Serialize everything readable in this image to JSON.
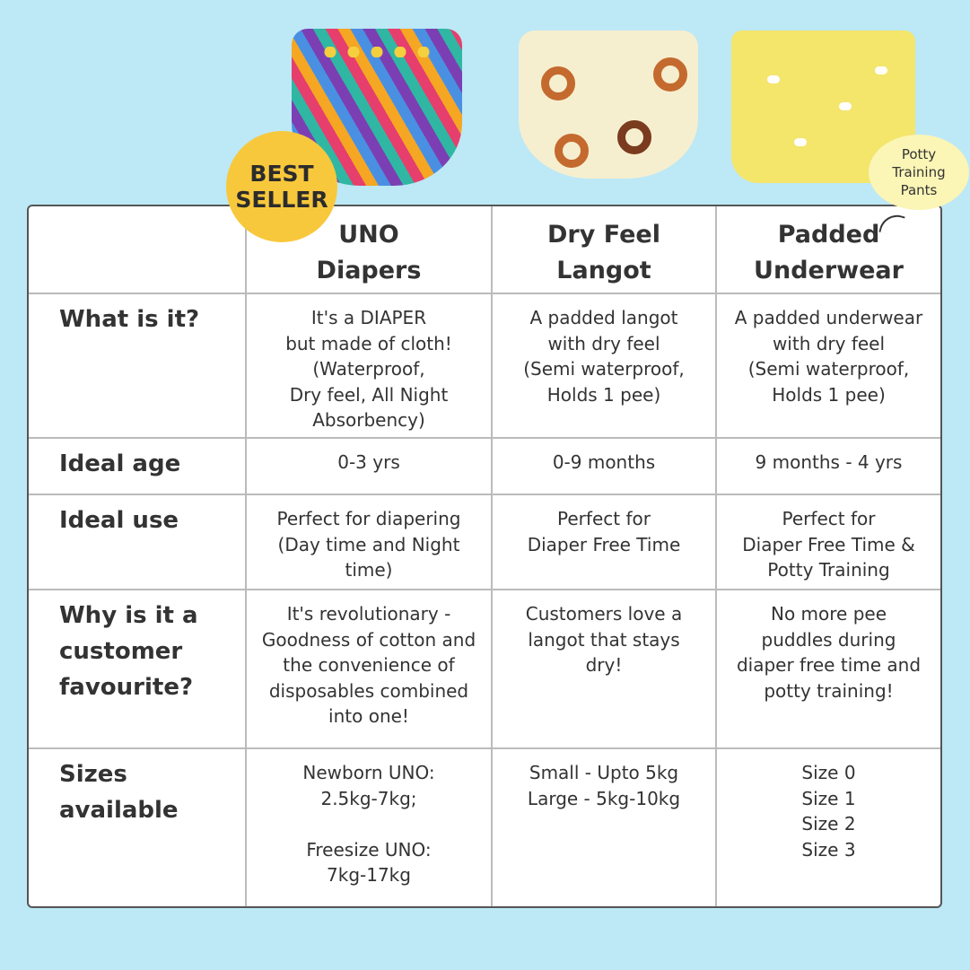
{
  "badges": {
    "best_seller": [
      "BEST",
      "SELLER"
    ],
    "potty": [
      "Potty",
      "Training",
      "Pants"
    ]
  },
  "columns": [
    "",
    "UNO\nDiapers",
    "Dry Feel\nLangot",
    "Padded\nUnderwear"
  ],
  "rows": [
    {
      "label": "What is it?",
      "values": [
        "It's a DIAPER\nbut made of cloth!\n(Waterproof,\nDry feel, All Night\nAbsorbency)",
        "A padded langot\nwith dry feel\n(Semi waterproof,\nHolds 1 pee)",
        "A padded underwear\nwith dry feel\n(Semi waterproof,\nHolds 1 pee)"
      ]
    },
    {
      "label": "Ideal age",
      "values": [
        "0-3 yrs",
        "0-9 months",
        "9 months - 4 yrs"
      ]
    },
    {
      "label": "Ideal use",
      "values": [
        "Perfect for diapering\n(Day time and Night\ntime)",
        "Perfect for\nDiaper Free Time",
        "Perfect for\nDiaper Free Time &\nPotty Training"
      ]
    },
    {
      "label": "Why is it a\ncustomer\nfavourite?",
      "values": [
        "It's revolutionary -\nGoodness of cotton and\nthe convenience of\ndisposables combined\ninto one!",
        "Customers love a\nlangot that stays\ndry!",
        "No more pee\npuddles during\ndiaper free time and\npotty training!"
      ]
    },
    {
      "label": "Sizes\navailable",
      "values": [
        "Newborn UNO:\n2.5kg-7kg;\n\nFreesize UNO:\n7kg-17kg",
        "Small - Upto 5kg\nLarge - 5kg-10kg",
        "Size 0\nSize 1\nSize 2\nSize 3"
      ]
    }
  ]
}
